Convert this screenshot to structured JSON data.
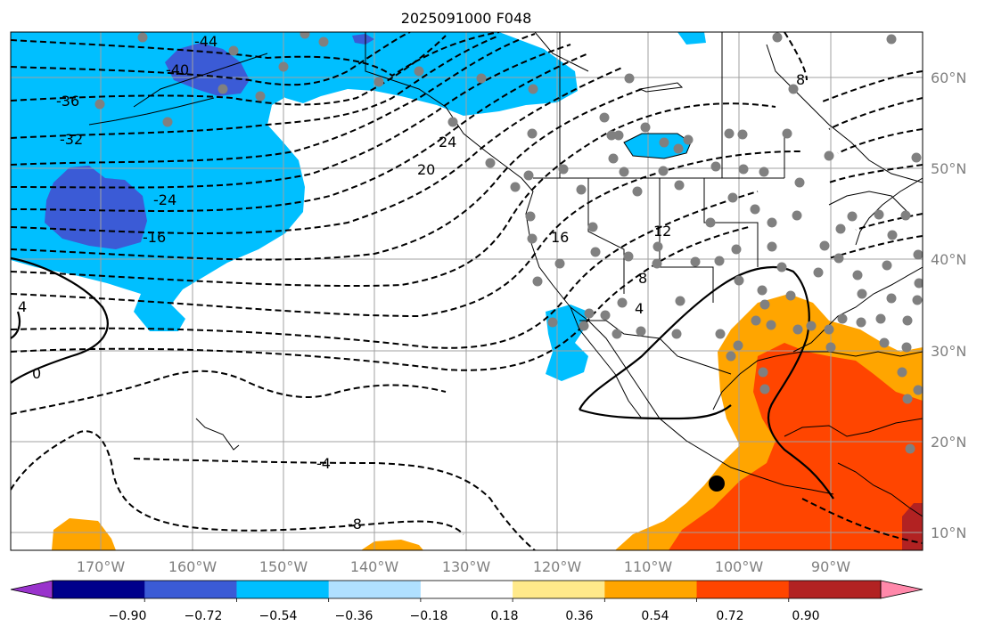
{
  "title": "2025091000 F048",
  "lon_labels": [
    "170°W",
    "160°W",
    "150°W",
    "140°W",
    "130°W",
    "120°W",
    "110°W",
    "100°W",
    "90°W"
  ],
  "lat_labels": [
    "60°N",
    "50°N",
    "40°N",
    "30°N",
    "20°N",
    "10°N"
  ],
  "colorbar": {
    "tick_labels": [
      "−0.90",
      "−0.72",
      "−0.54",
      "−0.36",
      "−0.18",
      "0.18",
      "0.36",
      "0.54",
      "0.72",
      "0.90"
    ],
    "colors": [
      "#9933cc",
      "#00008b",
      "#3b5bd6",
      "#00bfff",
      "#b0e0ff",
      "#ffffff",
      "#ffe98a",
      "#ffa500",
      "#ff4500",
      "#b22222",
      "#ff88aa"
    ]
  },
  "contour_labels": [
    "-44",
    "-40",
    "-36",
    "-32",
    "-24",
    "-16",
    "20",
    "24",
    "16",
    "12",
    "8",
    "4",
    "0",
    "-4",
    "-8",
    "8",
    "4"
  ],
  "fill_colors": {
    "cold_light": "#00bfff",
    "cold_dark": "#3b5bd6",
    "warm_orange": "#ffa500",
    "warm_red": "#ff4500",
    "warm_dark": "#b22222"
  },
  "station_color": "#808080",
  "marker_color": "#000000"
}
